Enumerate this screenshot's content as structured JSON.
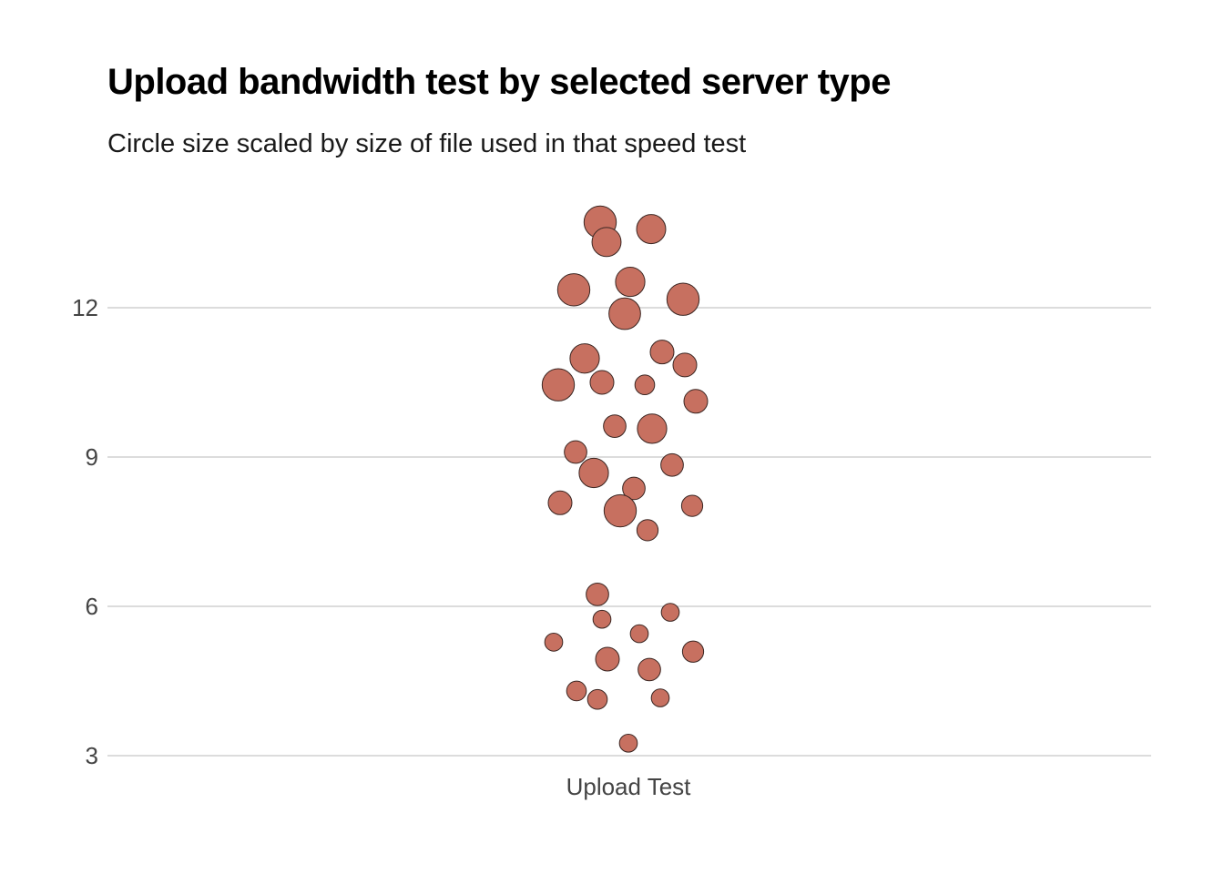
{
  "chart_data": {
    "type": "scatter",
    "title": "Upload bandwidth test by selected server type",
    "subtitle": "Circle size scaled by size of file used in that speed test",
    "xlabel": "",
    "ylabel": "",
    "categories": [
      "Upload Test"
    ],
    "ylim": [
      2.6,
      14.2
    ],
    "yticks": [
      3,
      6,
      9,
      12
    ],
    "grid": true,
    "legend": "none",
    "point_color": "#c77060",
    "point_stroke": "#3a2622",
    "series": [
      {
        "category": "Upload Test",
        "points": [
          {
            "jitter": -0.31,
            "y": 13.72,
            "size": 0.95
          },
          {
            "jitter": -0.24,
            "y": 13.32,
            "size": 0.7
          },
          {
            "jitter": 0.25,
            "y": 13.58,
            "size": 0.7
          },
          {
            "jitter": 0.02,
            "y": 12.52,
            "size": 0.72
          },
          {
            "jitter": -0.6,
            "y": 12.36,
            "size": 0.95
          },
          {
            "jitter": 0.6,
            "y": 12.17,
            "size": 0.95
          },
          {
            "jitter": -0.04,
            "y": 11.88,
            "size": 0.9
          },
          {
            "jitter": -0.48,
            "y": 10.98,
            "size": 0.72
          },
          {
            "jitter": 0.37,
            "y": 11.11,
            "size": 0.36
          },
          {
            "jitter": 0.62,
            "y": 10.85,
            "size": 0.36
          },
          {
            "jitter": -0.77,
            "y": 10.45,
            "size": 0.95
          },
          {
            "jitter": -0.29,
            "y": 10.5,
            "size": 0.36
          },
          {
            "jitter": 0.18,
            "y": 10.45,
            "size": 0.18
          },
          {
            "jitter": 0.74,
            "y": 10.12,
            "size": 0.36
          },
          {
            "jitter": -0.15,
            "y": 9.62,
            "size": 0.3
          },
          {
            "jitter": 0.26,
            "y": 9.57,
            "size": 0.72
          },
          {
            "jitter": -0.58,
            "y": 9.1,
            "size": 0.3
          },
          {
            "jitter": 0.48,
            "y": 8.84,
            "size": 0.3
          },
          {
            "jitter": -0.38,
            "y": 8.68,
            "size": 0.72
          },
          {
            "jitter": 0.06,
            "y": 8.37,
            "size": 0.3
          },
          {
            "jitter": -0.75,
            "y": 8.08,
            "size": 0.36
          },
          {
            "jitter": -0.09,
            "y": 7.92,
            "size": 0.95
          },
          {
            "jitter": 0.7,
            "y": 8.02,
            "size": 0.24
          },
          {
            "jitter": 0.21,
            "y": 7.53,
            "size": 0.24
          },
          {
            "jitter": -0.34,
            "y": 6.24,
            "size": 0.3
          },
          {
            "jitter": -0.29,
            "y": 5.74,
            "size": 0.12
          },
          {
            "jitter": 0.46,
            "y": 5.88,
            "size": 0.12
          },
          {
            "jitter": 0.12,
            "y": 5.45,
            "size": 0.12
          },
          {
            "jitter": -0.82,
            "y": 5.28,
            "size": 0.12
          },
          {
            "jitter": 0.71,
            "y": 5.09,
            "size": 0.24
          },
          {
            "jitter": -0.23,
            "y": 4.94,
            "size": 0.36
          },
          {
            "jitter": 0.23,
            "y": 4.73,
            "size": 0.3
          },
          {
            "jitter": -0.57,
            "y": 4.3,
            "size": 0.18
          },
          {
            "jitter": -0.34,
            "y": 4.13,
            "size": 0.18
          },
          {
            "jitter": 0.35,
            "y": 4.16,
            "size": 0.12
          },
          {
            "jitter": 0.0,
            "y": 3.25,
            "size": 0.12
          }
        ]
      }
    ]
  }
}
